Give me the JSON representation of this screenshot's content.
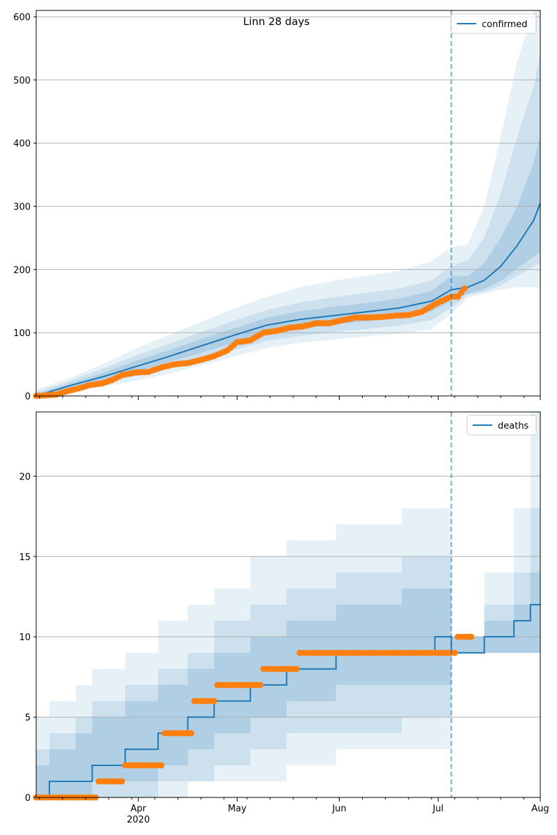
{
  "colors": {
    "model": "#1f77b4",
    "observed": "#ff7f0e",
    "grid": "#b0b0b0",
    "band": "#1f77b4"
  },
  "chart_data": [
    {
      "type": "line",
      "title": "Linn 28 days",
      "legend": {
        "label": "confirmed",
        "placement": "top-right"
      },
      "ylim": [
        0,
        610
      ],
      "yticks": [
        0,
        100,
        200,
        300,
        400,
        500,
        600
      ],
      "grid": "horizontal",
      "forecast_start": "2020-07-05",
      "projection": {
        "x": [
          "2020-03-01",
          "2020-03-11",
          "2020-03-21",
          "2020-03-31",
          "2020-04-10",
          "2020-04-20",
          "2020-04-30",
          "2020-05-10",
          "2020-05-20",
          "2020-05-30",
          "2020-06-09",
          "2020-06-19",
          "2020-06-29",
          "2020-07-05",
          "2020-07-10",
          "2020-07-15",
          "2020-07-20",
          "2020-07-25",
          "2020-07-30",
          "2020-08-01"
        ],
        "median": [
          0,
          16,
          30,
          46,
          62,
          79,
          96,
          112,
          121,
          127,
          133,
          139,
          150,
          168,
          172,
          183,
          205,
          238,
          278,
          305
        ],
        "band50_low": [
          0,
          12,
          24,
          38,
          53,
          68,
          84,
          99,
          107,
          113,
          118,
          124,
          134,
          150,
          162,
          169,
          182,
          202,
          220,
          228
        ],
        "band50_high": [
          3,
          19,
          36,
          55,
          72,
          90,
          107,
          124,
          134,
          141,
          147,
          154,
          166,
          190,
          190,
          210,
          250,
          300,
          370,
          410
        ],
        "band80_low": [
          0,
          9,
          19,
          31,
          44,
          58,
          73,
          87,
          95,
          101,
          106,
          111,
          120,
          140,
          160,
          165,
          175,
          190,
          205,
          210
        ],
        "band80_high": [
          6,
          23,
          43,
          63,
          82,
          101,
          119,
          136,
          148,
          156,
          163,
          170,
          183,
          205,
          215,
          250,
          320,
          410,
          490,
          540
        ],
        "band95_low": [
          0,
          6,
          14,
          24,
          35,
          48,
          62,
          76,
          84,
          89,
          94,
          98,
          106,
          130,
          155,
          162,
          168,
          172,
          172,
          172
        ],
        "band95_high": [
          10,
          28,
          50,
          74,
          96,
          117,
          138,
          157,
          172,
          182,
          190,
          198,
          213,
          235,
          240,
          300,
          410,
          530,
          610,
          610
        ]
      },
      "observed": {
        "x": [
          "2020-03-01",
          "2020-03-07",
          "2020-03-10",
          "2020-03-14",
          "2020-03-17",
          "2020-03-21",
          "2020-03-24",
          "2020-03-27",
          "2020-03-31",
          "2020-04-04",
          "2020-04-08",
          "2020-04-12",
          "2020-04-16",
          "2020-04-20",
          "2020-04-24",
          "2020-04-28",
          "2020-05-01",
          "2020-05-05",
          "2020-05-09",
          "2020-05-13",
          "2020-05-17",
          "2020-05-21",
          "2020-05-25",
          "2020-05-29",
          "2020-06-02",
          "2020-06-06",
          "2020-06-10",
          "2020-06-14",
          "2020-06-18",
          "2020-06-22",
          "2020-06-26",
          "2020-06-30",
          "2020-07-02",
          "2020-07-05",
          "2020-07-07",
          "2020-07-09"
        ],
        "y": [
          0,
          2,
          7,
          12,
          17,
          20,
          25,
          33,
          37,
          38,
          45,
          50,
          52,
          57,
          63,
          72,
          85,
          88,
          100,
          103,
          108,
          110,
          115,
          115,
          120,
          124,
          124,
          125,
          127,
          128,
          133,
          145,
          150,
          157,
          157,
          170
        ]
      }
    },
    {
      "type": "line",
      "title": "",
      "legend": {
        "label": "deaths",
        "placement": "top-right"
      },
      "ylim": [
        0,
        24
      ],
      "yticks": [
        0,
        5,
        10,
        15,
        20
      ],
      "grid": "horizontal",
      "forecast_start": "2020-07-05",
      "xticks": [
        "Apr\n2020",
        "May",
        "Jun",
        "Jul",
        "Aug"
      ],
      "projection": {
        "steps": [
          {
            "start": "2020-03-01",
            "median": 0,
            "b50": [
              0,
              2
            ],
            "b80": [
              0,
              3
            ],
            "b95": [
              0,
              5
            ]
          },
          {
            "start": "2020-03-05",
            "median": 1,
            "b50": [
              0,
              3
            ],
            "b80": [
              0,
              4
            ],
            "b95": [
              0,
              6
            ]
          },
          {
            "start": "2020-03-13",
            "median": 1,
            "b50": [
              0,
              4
            ],
            "b80": [
              0,
              5
            ],
            "b95": [
              0,
              7
            ]
          },
          {
            "start": "2020-03-18",
            "median": 2,
            "b50": [
              1,
              5
            ],
            "b80": [
              0,
              6
            ],
            "b95": [
              0,
              8
            ]
          },
          {
            "start": "2020-03-28",
            "median": 3,
            "b50": [
              1,
              6
            ],
            "b80": [
              0,
              7
            ],
            "b95": [
              0,
              9
            ]
          },
          {
            "start": "2020-04-07",
            "median": 4,
            "b50": [
              2,
              7
            ],
            "b80": [
              1,
              8
            ],
            "b95": [
              0,
              11
            ]
          },
          {
            "start": "2020-04-16",
            "median": 5,
            "b50": [
              3,
              8
            ],
            "b80": [
              1,
              9
            ],
            "b95": [
              1,
              12
            ]
          },
          {
            "start": "2020-04-24",
            "median": 6,
            "b50": [
              4,
              9
            ],
            "b80": [
              2,
              11
            ],
            "b95": [
              1,
              13
            ]
          },
          {
            "start": "2020-05-05",
            "median": 7,
            "b50": [
              5,
              10
            ],
            "b80": [
              3,
              12
            ],
            "b95": [
              1,
              15
            ]
          },
          {
            "start": "2020-05-16",
            "median": 8,
            "b50": [
              6,
              11
            ],
            "b80": [
              4,
              13
            ],
            "b95": [
              2,
              16
            ]
          },
          {
            "start": "2020-05-31",
            "median": 9,
            "b50": [
              7,
              12
            ],
            "b80": [
              4,
              14
            ],
            "b95": [
              3,
              17
            ]
          },
          {
            "start": "2020-06-20",
            "median": 9,
            "b50": [
              7,
              13
            ],
            "b80": [
              5,
              15
            ],
            "b95": [
              3,
              18
            ]
          },
          {
            "start": "2020-06-30",
            "median": 10,
            "b50": [
              7,
              13
            ],
            "b80": [
              5,
              15
            ],
            "b95": [
              3,
              18
            ]
          },
          {
            "start": "2020-07-05",
            "median": 9,
            "b50": [
              9,
              10
            ],
            "b80": [
              9,
              10
            ],
            "b95": [
              9,
              10
            ]
          },
          {
            "start": "2020-07-15",
            "median": 10,
            "b50": [
              9,
              11
            ],
            "b80": [
              9,
              12
            ],
            "b95": [
              9,
              14
            ]
          },
          {
            "start": "2020-07-24",
            "median": 11,
            "b50": [
              9,
              12
            ],
            "b80": [
              9,
              14
            ],
            "b95": [
              9,
              18
            ]
          },
          {
            "start": "2020-07-29",
            "median": 12,
            "b50": [
              9,
              14
            ],
            "b80": [
              9,
              18
            ],
            "b95": [
              9,
              24
            ]
          }
        ],
        "end": "2020-08-01"
      },
      "observed": {
        "runs": [
          {
            "from": "2020-03-01",
            "to": "2020-03-19",
            "y": 0
          },
          {
            "from": "2020-03-20",
            "to": "2020-03-27",
            "y": 1
          },
          {
            "from": "2020-03-28",
            "to": "2020-04-08",
            "y": 2
          },
          {
            "from": "2020-04-09",
            "to": "2020-04-17",
            "y": 4
          },
          {
            "from": "2020-04-18",
            "to": "2020-04-24",
            "y": 6
          },
          {
            "from": "2020-04-25",
            "to": "2020-05-08",
            "y": 7
          },
          {
            "from": "2020-05-09",
            "to": "2020-05-19",
            "y": 8
          },
          {
            "from": "2020-05-20",
            "to": "2020-07-06",
            "y": 9
          },
          {
            "from": "2020-07-07",
            "to": "2020-07-11",
            "y": 10
          }
        ]
      }
    }
  ]
}
